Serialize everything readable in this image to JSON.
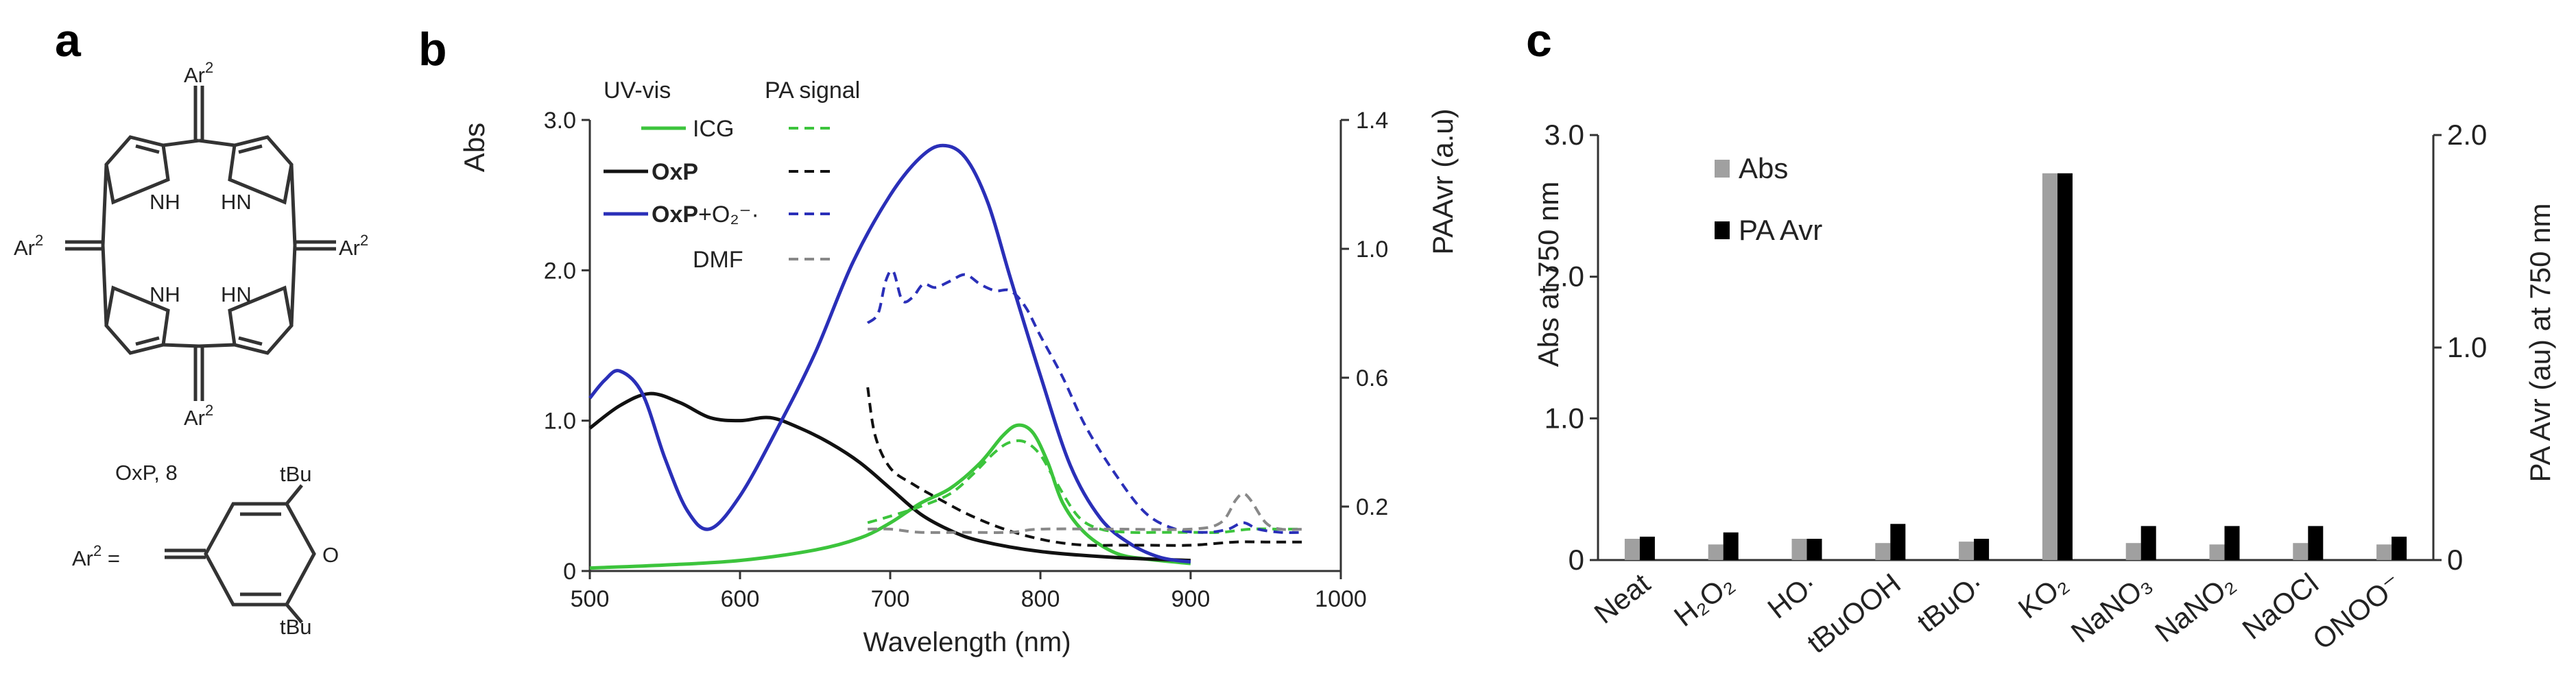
{
  "panels": {
    "a": {
      "label": "a",
      "molecule_name": "OxP, 8",
      "substituent_label": "Ar",
      "substituent_sup": "2",
      "nh_label": "NH",
      "hn_label": "HN",
      "ar2_def_label": "Ar",
      "ar2_def_sup": "2",
      "ar2_def_eq": " =",
      "tbu_label": "tBu",
      "oxygen_label": "O"
    },
    "b": {
      "label": "b"
    },
    "c": {
      "label": "c"
    }
  },
  "chart_data": [
    {
      "type": "line",
      "panel": "b",
      "xlabel": "Wavelength (nm)",
      "ylabel": "Abs",
      "y2label": "PAAvr  (a.u)",
      "xlim": [
        500,
        1000
      ],
      "ylim": [
        0,
        3.0
      ],
      "y2lim": [
        0,
        1.4
      ],
      "xticks": [
        500,
        600,
        700,
        800,
        900,
        1000
      ],
      "yticks": [
        0,
        1.0,
        2.0,
        3.0
      ],
      "y2ticks": [
        0.2,
        0.6,
        1.0,
        1.4
      ],
      "ytick_labels": [
        "0",
        "1.0",
        "2.0",
        "3.0"
      ],
      "y2tick_labels": [
        "0.2",
        "0.6",
        "1.0",
        "1.4"
      ],
      "legend": {
        "header_uv": "UV-vis",
        "header_pa": "PA signal",
        "entries": [
          {
            "label": "ICG",
            "bold": "",
            "color": "#3cc43c",
            "suffix": ""
          },
          {
            "label": "",
            "bold": "OxP",
            "color": "#111111",
            "suffix": ""
          },
          {
            "label": "",
            "bold": "OxP",
            "color": "#2a2fb8",
            "suffix": "+O₂⁻·"
          },
          {
            "label": "DMF",
            "bold": "",
            "color": "#888888",
            "suffix": ""
          }
        ]
      },
      "series": [
        {
          "name": "ICG UV-vis",
          "axis": "left",
          "style": "solid",
          "color": "#3cc43c",
          "x": [
            500,
            550,
            600,
            650,
            680,
            700,
            720,
            740,
            760,
            775,
            785,
            795,
            805,
            815,
            830,
            850,
            870,
            900
          ],
          "y": [
            0.02,
            0.04,
            0.07,
            0.14,
            0.22,
            0.32,
            0.45,
            0.55,
            0.72,
            0.9,
            0.97,
            0.92,
            0.72,
            0.45,
            0.25,
            0.12,
            0.08,
            0.05
          ]
        },
        {
          "name": "OxP UV-vis",
          "axis": "left",
          "style": "solid",
          "color": "#111111",
          "x": [
            500,
            520,
            540,
            560,
            580,
            600,
            620,
            640,
            660,
            680,
            700,
            720,
            740,
            760,
            800,
            850,
            900
          ],
          "y": [
            0.95,
            1.1,
            1.18,
            1.12,
            1.02,
            1.0,
            1.02,
            0.95,
            0.85,
            0.72,
            0.55,
            0.38,
            0.27,
            0.2,
            0.13,
            0.09,
            0.07
          ]
        },
        {
          "name": "OxP+O2 UV-vis",
          "axis": "left",
          "style": "solid",
          "color": "#2a2fb8",
          "x": [
            500,
            510,
            520,
            535,
            550,
            565,
            580,
            600,
            625,
            650,
            675,
            700,
            720,
            735,
            750,
            765,
            780,
            800,
            820,
            840,
            860,
            880,
            900
          ],
          "y": [
            1.15,
            1.27,
            1.33,
            1.18,
            0.75,
            0.4,
            0.28,
            0.5,
            0.95,
            1.45,
            2.05,
            2.5,
            2.75,
            2.83,
            2.75,
            2.45,
            1.95,
            1.3,
            0.7,
            0.35,
            0.18,
            0.09,
            0.06
          ]
        },
        {
          "name": "ICG PA signal",
          "axis": "right",
          "style": "dashed",
          "color": "#3cc43c",
          "x": [
            685,
            700,
            720,
            740,
            755,
            770,
            780,
            790,
            800,
            810,
            825,
            840,
            860,
            880,
            900,
            920,
            940,
            960,
            975
          ],
          "y": [
            0.15,
            0.17,
            0.2,
            0.24,
            0.3,
            0.37,
            0.4,
            0.4,
            0.36,
            0.28,
            0.17,
            0.13,
            0.12,
            0.12,
            0.12,
            0.12,
            0.13,
            0.13,
            0.13
          ]
        },
        {
          "name": "OxP PA signal",
          "axis": "right",
          "style": "dashed",
          "color": "#111111",
          "x": [
            685,
            690,
            700,
            715,
            730,
            750,
            770,
            790,
            810,
            830,
            850,
            870,
            900,
            930,
            950,
            975
          ],
          "y": [
            0.57,
            0.42,
            0.32,
            0.27,
            0.23,
            0.18,
            0.14,
            0.11,
            0.09,
            0.08,
            0.08,
            0.08,
            0.08,
            0.09,
            0.09,
            0.09
          ]
        },
        {
          "name": "OxP+O2 PA signal",
          "axis": "right",
          "style": "dashed",
          "color": "#2a2fb8",
          "x": [
            685,
            692,
            697,
            702,
            708,
            715,
            722,
            730,
            740,
            750,
            760,
            770,
            780,
            790,
            800,
            815,
            830,
            850,
            870,
            890,
            910,
            925,
            935,
            945,
            960,
            975
          ],
          "y": [
            0.77,
            0.8,
            0.9,
            0.93,
            0.84,
            0.85,
            0.89,
            0.88,
            0.9,
            0.92,
            0.89,
            0.87,
            0.87,
            0.82,
            0.73,
            0.6,
            0.45,
            0.3,
            0.18,
            0.13,
            0.12,
            0.13,
            0.15,
            0.13,
            0.12,
            0.12
          ]
        },
        {
          "name": "DMF PA signal",
          "axis": "right",
          "style": "dashed",
          "color": "#888888",
          "x": [
            685,
            700,
            720,
            750,
            780,
            800,
            850,
            900,
            920,
            930,
            935,
            940,
            950,
            960,
            975
          ],
          "y": [
            0.13,
            0.13,
            0.12,
            0.12,
            0.12,
            0.13,
            0.13,
            0.13,
            0.15,
            0.22,
            0.24,
            0.22,
            0.15,
            0.13,
            0.13
          ]
        }
      ]
    },
    {
      "type": "bar",
      "panel": "c",
      "ylabel": "Abs at 750 nm",
      "y2label": "PA Avr (au) at 750 nm",
      "ylim": [
        0,
        3.0
      ],
      "y2lim": [
        0,
        2.0
      ],
      "yticks": [
        0,
        1.0,
        2.0,
        3.0
      ],
      "y2ticks": [
        0,
        1.0,
        2.0
      ],
      "ytick_labels": [
        "0",
        "1.0",
        "2.0",
        "3.0"
      ],
      "y2tick_labels": [
        "0",
        "1.0",
        "2.0"
      ],
      "legend_position": "top-left",
      "categories": [
        "Neat",
        "H₂O₂",
        "HO·",
        "tBuOOH",
        "tBuO·",
        "KO₂",
        "NaNO₃",
        "NaNO₂",
        "NaOCl",
        "ONOO⁻"
      ],
      "series": [
        {
          "name": "Abs",
          "axis": "left",
          "color": "#a0a0a0",
          "values": [
            0.15,
            0.11,
            0.15,
            0.12,
            0.13,
            2.73,
            0.12,
            0.11,
            0.12,
            0.11
          ]
        },
        {
          "name": "PA Avr",
          "axis": "right",
          "color": "#000000",
          "values": [
            0.11,
            0.13,
            0.1,
            0.17,
            0.1,
            1.82,
            0.16,
            0.16,
            0.16,
            0.11
          ]
        }
      ]
    }
  ]
}
